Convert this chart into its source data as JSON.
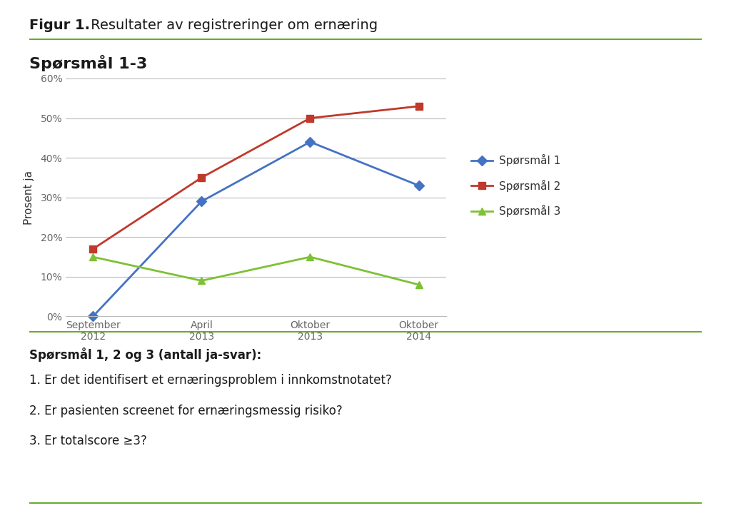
{
  "title_bold": "Figur 1.",
  "title_normal": " Resultater av registreringer om ernæring",
  "section1_title": "Spørsmål 1-3",
  "x_labels": [
    "September\n2012",
    "April\n2013",
    "Oktober\n2013",
    "Oktober\n2014"
  ],
  "series": [
    {
      "name": "Spørsmål 1",
      "values": [
        0,
        29,
        44,
        33
      ],
      "color": "#4472C4",
      "marker": "D",
      "linewidth": 2
    },
    {
      "name": "Spørsmål 2",
      "values": [
        17,
        35,
        50,
        53
      ],
      "color": "#C0392B",
      "marker": "s",
      "linewidth": 2
    },
    {
      "name": "Spørsmål 3",
      "values": [
        15,
        9,
        15,
        8
      ],
      "color": "#7DC134",
      "marker": "^",
      "linewidth": 2
    }
  ],
  "ylabel": "Prosent ja",
  "ylim": [
    0,
    60
  ],
  "yticks": [
    0,
    10,
    20,
    30,
    40,
    50,
    60
  ],
  "ytick_labels": [
    "0%",
    "10%",
    "20%",
    "30%",
    "40%",
    "50%",
    "60%"
  ],
  "section2_title": "Spørsmål 1, 2 og 3 (antall ja-svar):",
  "footnotes": [
    "1. Er det identifisert et ernæringsproblem i innkomstnotatet?",
    "2. Er pasienten screenet for ernæringsmessig risiko?",
    "3. Er totalscore ≥3?"
  ],
  "bg_color": "#FFFFFF",
  "grid_color": "#BBBBBB",
  "line_color": "#6AAB2E",
  "title_fontsize": 14,
  "section_fontsize": 16,
  "axis_fontsize": 11,
  "tick_fontsize": 10,
  "legend_fontsize": 11,
  "text_fontsize": 12
}
